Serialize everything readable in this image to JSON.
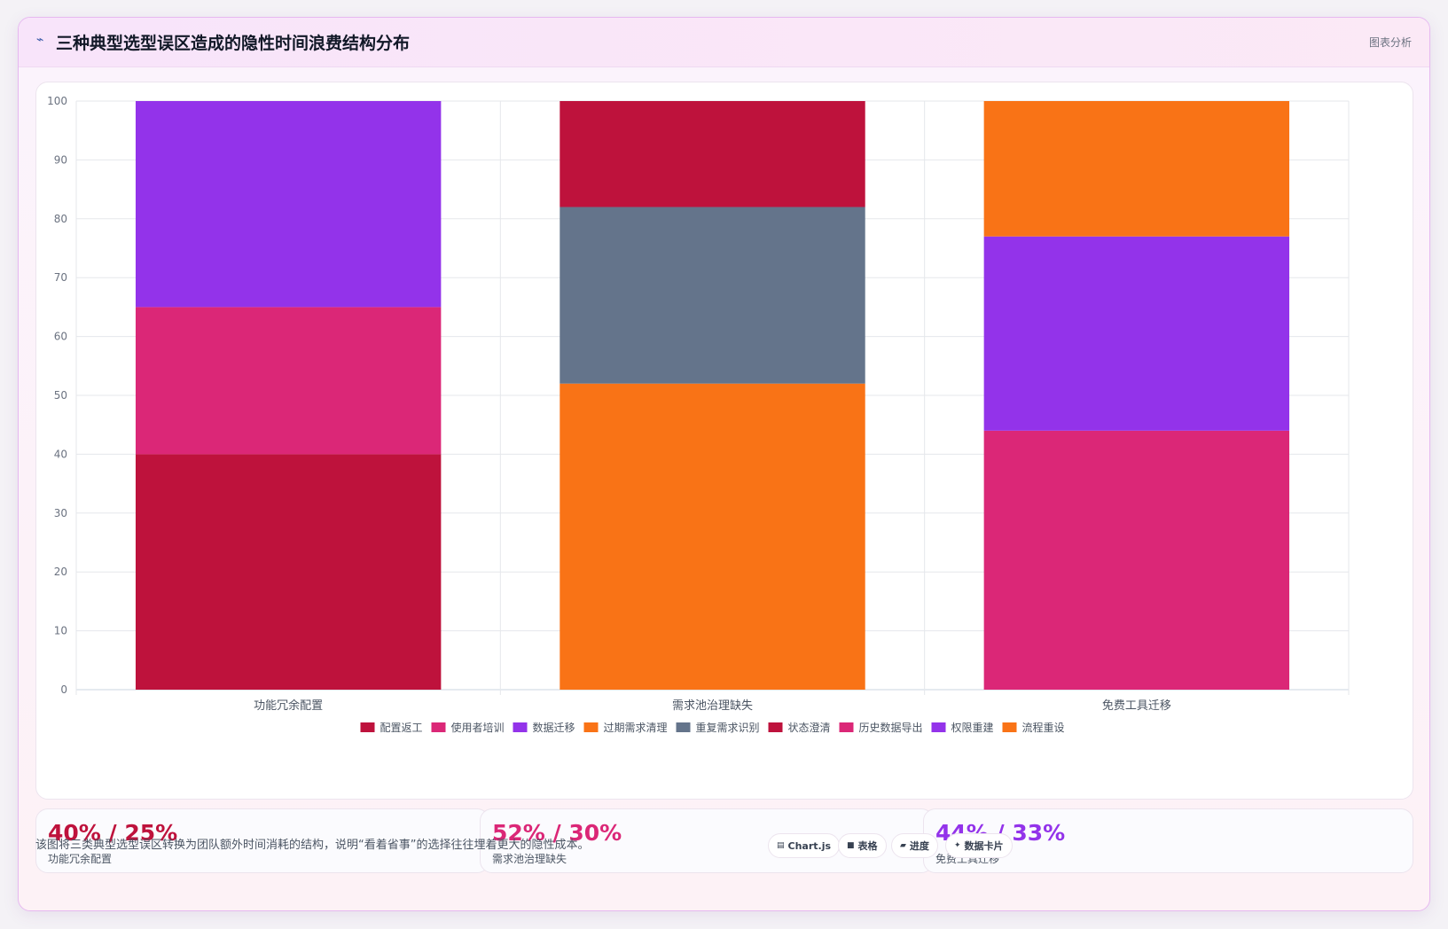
{
  "header": {
    "icon": "chart-icon",
    "title": "三种典型选型误区造成的隐性时间浪费结构分布",
    "tag": "图表分析"
  },
  "chart_data": {
    "type": "bar",
    "stacked": true,
    "categories": [
      "功能冗余配置",
      "需求池治理缺失",
      "免费工具迁移"
    ],
    "ylim": [
      0,
      100
    ],
    "yticks": [
      0,
      10,
      20,
      30,
      40,
      50,
      60,
      70,
      80,
      90,
      100
    ],
    "grid": true,
    "legend_position": "bottom",
    "series": [
      {
        "name": "配置返工",
        "color": "#be123c",
        "values": [
          40,
          0,
          0
        ]
      },
      {
        "name": "使用者培训",
        "color": "#db2777",
        "values": [
          25,
          0,
          0
        ]
      },
      {
        "name": "数据迁移",
        "color": "#9333ea",
        "values": [
          35,
          0,
          0
        ]
      },
      {
        "name": "过期需求清理",
        "color": "#f97316",
        "values": [
          0,
          52,
          0
        ]
      },
      {
        "name": "重复需求识别",
        "color": "#64748b",
        "values": [
          0,
          30,
          0
        ]
      },
      {
        "name": "状态澄清",
        "color": "#be123c",
        "values": [
          0,
          18,
          0
        ]
      },
      {
        "name": "历史数据导出",
        "color": "#db2777",
        "values": [
          0,
          0,
          44
        ]
      },
      {
        "name": "权限重建",
        "color": "#9333ea",
        "values": [
          0,
          0,
          33
        ]
      },
      {
        "name": "流程重设",
        "color": "#f97316",
        "values": [
          0,
          0,
          23
        ]
      }
    ]
  },
  "stats": [
    {
      "value": "40% / 25%",
      "label": "功能冗余配置",
      "color": "#be123c"
    },
    {
      "value": "52% / 30%",
      "label": "需求池治理缺失",
      "color": "#db2777"
    },
    {
      "value": "44% / 33%",
      "label": "免费工具迁移",
      "color": "#9333ea"
    }
  ],
  "footnote": "该图将三类典型选型误区转换为团队额外时间消耗的结构，说明“看着省事”的选择往往埋着更大的隐性成本。",
  "chips": [
    {
      "icon": "▤",
      "label": "Chart.js"
    },
    {
      "icon": "■",
      "label": "表格"
    },
    {
      "icon": "▰",
      "label": "进度"
    },
    {
      "icon": "✦",
      "label": "数据卡片"
    }
  ]
}
